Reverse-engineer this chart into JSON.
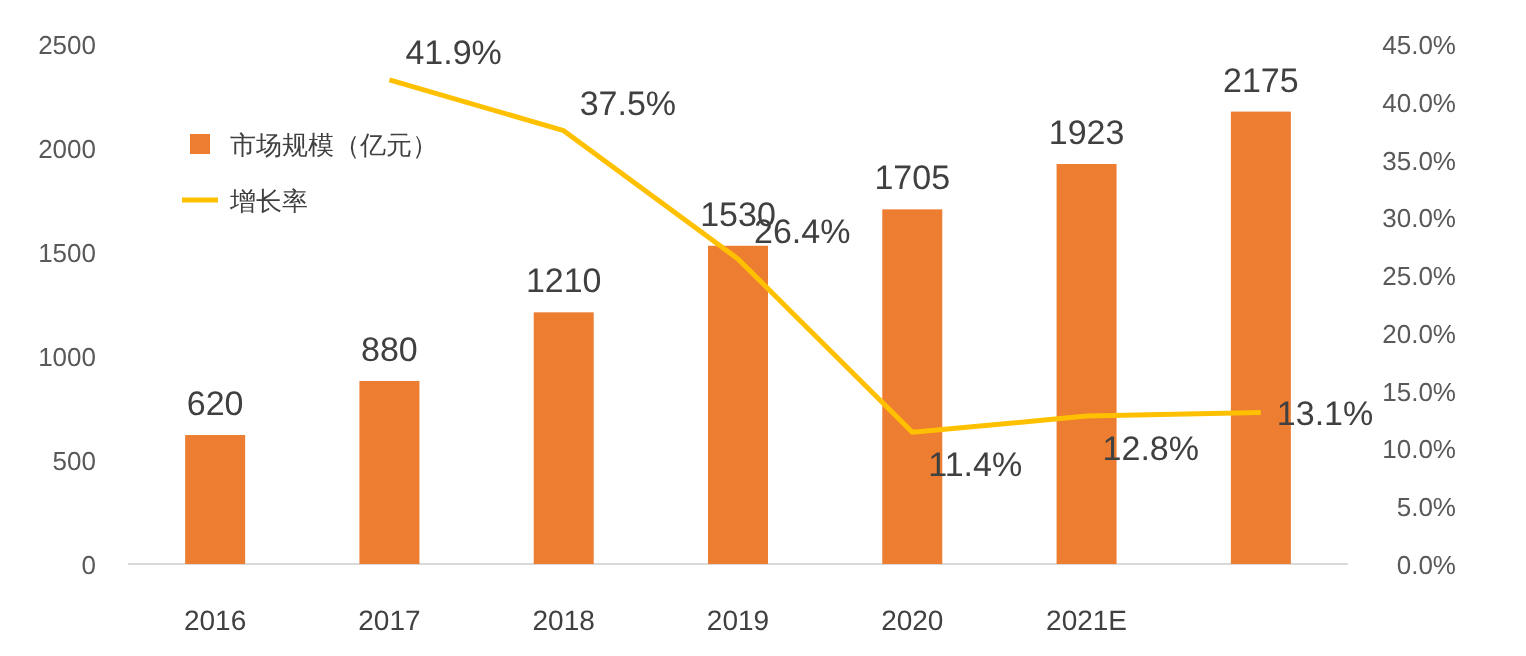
{
  "chart_data": {
    "type": "bar",
    "categories": [
      "2016",
      "2017",
      "2018",
      "2019",
      "2020",
      "2021E",
      null
    ],
    "series": [
      {
        "name": "市场规模（亿元）",
        "color": "#ed7d31",
        "values": [
          620,
          880,
          1210,
          1530,
          1705,
          1923,
          2175
        ]
      },
      {
        "name": "增长率",
        "type": "line",
        "axis": "y2",
        "color": "#ffc000",
        "values": [
          null,
          41.9,
          37.5,
          26.4,
          11.4,
          12.8,
          13.1
        ],
        "value_labels": [
          null,
          "41.9%",
          "37.5%",
          "26.4%",
          "11.4%",
          "12.8%",
          "13.1%"
        ]
      }
    ],
    "ylim": [
      0,
      2500
    ],
    "yticks": [
      0,
      500,
      1000,
      1500,
      2000,
      2500
    ],
    "y2lim": [
      0,
      45
    ],
    "y2ticks": [
      {
        "value": 0,
        "label": "0.0%"
      },
      {
        "value": 5,
        "label": "5.0%"
      },
      {
        "value": 10,
        "label": "10.0%"
      },
      {
        "value": 15,
        "label": "15.0%"
      },
      {
        "value": 20,
        "label": "20.0%"
      },
      {
        "value": 25,
        "label": "25.0%"
      },
      {
        "value": 30,
        "label": "30.0%"
      },
      {
        "value": 35,
        "label": "35.0%"
      },
      {
        "value": 40,
        "label": "40.0%"
      },
      {
        "value": 45,
        "label": "45.0%"
      }
    ],
    "data_labels": true,
    "legend": "top left"
  }
}
